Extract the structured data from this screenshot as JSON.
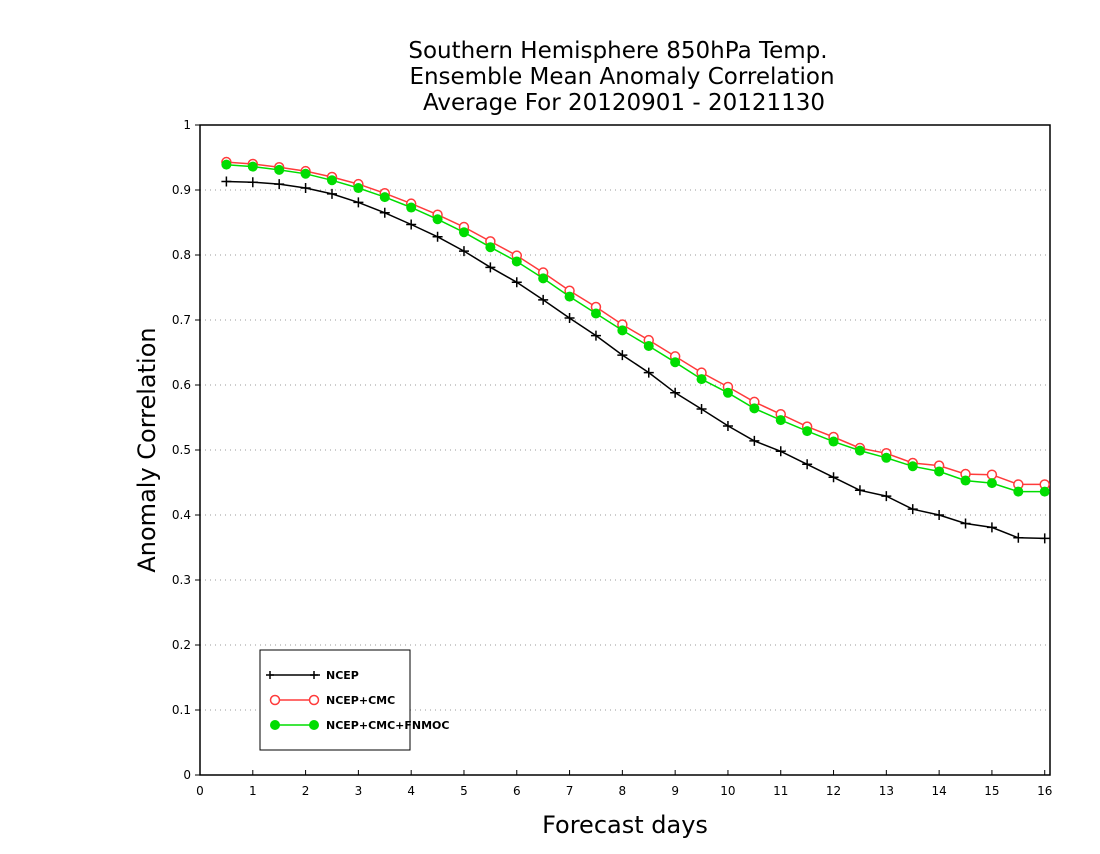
{
  "chart_data": {
    "type": "line",
    "title_lines": [
      "Southern Hemisphere 850hPa Temp.",
      "Ensemble Mean Anomaly Correlation",
      "Average For 20120901 - 20121130"
    ],
    "xlabel": "Forecast days",
    "ylabel": "Anomaly Correlation",
    "xlim": [
      0,
      16.1
    ],
    "ylim": [
      0,
      1
    ],
    "xticks": [
      "0",
      "1",
      "2",
      "3",
      "4",
      "5",
      "6",
      "7",
      "8",
      "9",
      "10",
      "11",
      "12",
      "13",
      "14",
      "15",
      "16"
    ],
    "yticks": [
      "0",
      "0.1",
      "0.2",
      "0.3",
      "0.4",
      "0.5",
      "0.6",
      "0.7",
      "0.8",
      "0.9",
      "1"
    ],
    "grid": "horizontal dotted",
    "legend_position": "bottom-left",
    "x": [
      0.5,
      1,
      1.5,
      2,
      2.5,
      3,
      3.5,
      4,
      4.5,
      5,
      5.5,
      6,
      6.5,
      7,
      7.5,
      8,
      8.5,
      9,
      9.5,
      10,
      10.5,
      11,
      11.5,
      12,
      12.5,
      13,
      13.5,
      14,
      14.5,
      15,
      15.5,
      16
    ],
    "series": [
      {
        "name": "NCEP",
        "color": "#000000",
        "marker": "plus",
        "values": [
          0.913,
          0.912,
          0.909,
          0.903,
          0.894,
          0.881,
          0.865,
          0.847,
          0.828,
          0.806,
          0.781,
          0.758,
          0.731,
          0.703,
          0.676,
          0.646,
          0.619,
          0.588,
          0.563,
          0.537,
          0.514,
          0.498,
          0.478,
          0.458,
          0.438,
          0.429,
          0.409,
          0.4,
          0.387,
          0.381,
          0.365,
          0.364
        ]
      },
      {
        "name": "NCEP+CMC",
        "color": "#ff3b3b",
        "marker": "open-circle",
        "values": [
          0.943,
          0.94,
          0.935,
          0.929,
          0.92,
          0.909,
          0.895,
          0.879,
          0.862,
          0.843,
          0.821,
          0.799,
          0.773,
          0.745,
          0.72,
          0.693,
          0.669,
          0.644,
          0.619,
          0.597,
          0.574,
          0.555,
          0.536,
          0.52,
          0.503,
          0.495,
          0.48,
          0.476,
          0.463,
          0.462,
          0.447,
          0.447
        ]
      },
      {
        "name": "NCEP+CMC+FNMOC",
        "color": "#00dd00",
        "marker": "filled-circle",
        "values": [
          0.939,
          0.936,
          0.931,
          0.925,
          0.915,
          0.903,
          0.889,
          0.873,
          0.855,
          0.835,
          0.812,
          0.79,
          0.764,
          0.736,
          0.71,
          0.684,
          0.66,
          0.635,
          0.609,
          0.588,
          0.564,
          0.546,
          0.529,
          0.513,
          0.499,
          0.488,
          0.475,
          0.467,
          0.453,
          0.449,
          0.436,
          0.436
        ]
      }
    ]
  }
}
